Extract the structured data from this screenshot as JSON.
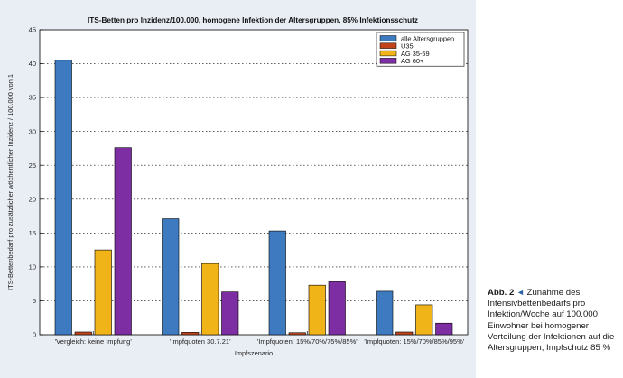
{
  "chart_data": {
    "type": "bar",
    "title": "ITS-Betten pro Inzidenz/100.000, homogene Infektion der Altersgruppen, 85% Infektionsschutz",
    "xlabel": "Impfszenario",
    "ylabel": "ITS-Bettenbedarf pro zusätzlicher wöchentlicher Inzidenz / 100.000 von 1",
    "categories": [
      "'Vergleich: keine Impfung'",
      "'Impfquoten 30.7.21'",
      "'Impfquoten: 15%/70%/75%/85%'",
      "'Impfquoten: 15%/70%/85%/95%'"
    ],
    "series": [
      {
        "name": "alle Altersgruppen",
        "color": "#3e7abf",
        "values": [
          40.5,
          17.1,
          15.3,
          6.4
        ]
      },
      {
        "name": "U35",
        "color": "#c0451c",
        "values": [
          0.4,
          0.35,
          0.3,
          0.4
        ]
      },
      {
        "name": "AG 35-59",
        "color": "#f0b419",
        "values": [
          12.5,
          10.5,
          7.3,
          4.4
        ]
      },
      {
        "name": "AG 60+",
        "color": "#7e2ea3",
        "values": [
          27.6,
          6.3,
          7.8,
          1.7
        ]
      }
    ],
    "ylim": [
      0,
      45
    ],
    "yticks": [
      0,
      5,
      10,
      15,
      20,
      25,
      30,
      35,
      40,
      45
    ],
    "grid": true,
    "legend_position": "top-right"
  },
  "caption": {
    "label": "Abb. 2",
    "arrow": "◄",
    "text": "Zunahme des Intensivbettenbedarfs pro Infektion/Woche auf 100.000 Einwohner bei homogener Verteilung der Infektionen auf die Altersgruppen, Impfschutz 85 %"
  }
}
